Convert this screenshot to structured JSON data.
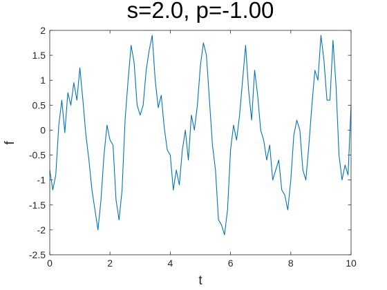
{
  "chart_data": {
    "type": "line",
    "title": "s=2.0, p=-1.00",
    "xlabel": "t",
    "ylabel": "f",
    "xlim": [
      0,
      10
    ],
    "ylim": [
      -2.5,
      2
    ],
    "xticks": [
      0,
      2,
      4,
      6,
      8,
      10
    ],
    "yticks": [
      -2.5,
      -2,
      -1.5,
      -1,
      -0.5,
      0,
      0.5,
      1,
      1.5,
      2
    ],
    "grid": false,
    "line_color": "#0072BD",
    "series": [
      {
        "x": [
          0,
          0.1,
          0.2,
          0.3,
          0.4,
          0.5,
          0.6,
          0.7,
          0.8,
          0.9,
          1.0,
          1.1,
          1.2,
          1.3,
          1.4,
          1.5,
          1.6,
          1.7,
          1.8,
          1.9,
          2.0,
          2.1,
          2.2,
          2.3,
          2.4,
          2.5,
          2.6,
          2.7,
          2.8,
          2.9,
          3.0,
          3.1,
          3.2,
          3.3,
          3.4,
          3.5,
          3.6,
          3.7,
          3.8,
          3.9,
          4.0,
          4.1,
          4.2,
          4.3,
          4.4,
          4.5,
          4.6,
          4.7,
          4.8,
          4.9,
          5.0,
          5.1,
          5.2,
          5.3,
          5.4,
          5.5,
          5.6,
          5.7,
          5.8,
          5.9,
          6.0,
          6.1,
          6.2,
          6.3,
          6.4,
          6.5,
          6.6,
          6.7,
          6.8,
          6.9,
          7.0,
          7.1,
          7.2,
          7.3,
          7.4,
          7.5,
          7.6,
          7.7,
          7.8,
          7.9,
          8.0,
          8.1,
          8.2,
          8.3,
          8.4,
          8.5,
          8.6,
          8.7,
          8.8,
          8.9,
          9.0,
          9.1,
          9.2,
          9.3,
          9.4,
          9.5,
          9.6,
          9.7,
          9.8,
          9.9,
          10.0
        ],
        "y": [
          -0.8,
          -1.2,
          -0.9,
          0.1,
          0.6,
          -0.05,
          0.75,
          0.5,
          0.95,
          0.6,
          1.25,
          0.6,
          -0.1,
          -0.6,
          -1.2,
          -1.6,
          -2.0,
          -1.4,
          -0.5,
          0.1,
          -0.2,
          -0.3,
          -1.4,
          -1.8,
          -1.2,
          0.2,
          1.0,
          1.7,
          1.35,
          0.5,
          0.3,
          0.5,
          1.2,
          1.6,
          1.9,
          1.0,
          0.45,
          0.7,
          0.05,
          -0.4,
          -0.5,
          -1.2,
          -0.8,
          -1.1,
          -0.4,
          0.0,
          -0.6,
          0.3,
          0.0,
          0.5,
          1.3,
          1.75,
          1.5,
          0.6,
          -0.3,
          -0.8,
          -1.8,
          -1.9,
          -2.1,
          -1.6,
          -0.4,
          0.1,
          -0.2,
          0.3,
          1.0,
          1.7,
          0.8,
          0.2,
          1.2,
          0.7,
          0.0,
          -0.2,
          -0.6,
          -0.3,
          -1.0,
          -0.8,
          -0.6,
          -1.2,
          -1.3,
          -1.6,
          -1.0,
          -0.1,
          0.2,
          0.0,
          -0.8,
          -1.0,
          -0.3,
          0.5,
          1.2,
          1.0,
          1.9,
          1.4,
          0.6,
          0.6,
          1.8,
          0.9,
          -0.5,
          -1.0,
          -0.7,
          -0.9,
          0.5
        ]
      }
    ]
  }
}
